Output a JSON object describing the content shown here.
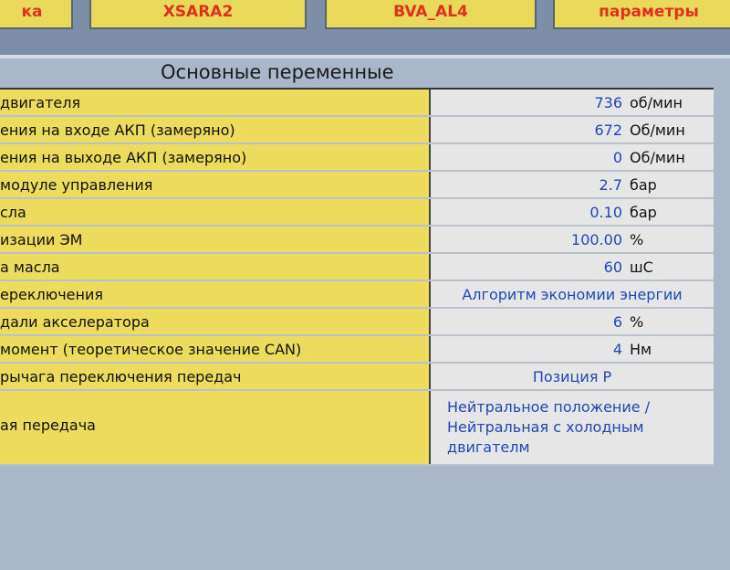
{
  "top_buttons": [
    "ка",
    "XSARA2",
    "BVA_AL4",
    "параметры"
  ],
  "panel_title": "Основные переменные",
  "rows": [
    {
      "label": "двигателя",
      "value": "736",
      "unit": "об/мин"
    },
    {
      "label": "ения на входе АКП (замеряно)",
      "value": "672",
      "unit": "Об/мин"
    },
    {
      "label": "ения на выходе АКП (замеряно)",
      "value": "0",
      "unit": "Об/мин"
    },
    {
      "label": "модуле управления",
      "value": "2.7",
      "unit": "бар"
    },
    {
      "label": "сла",
      "value": "0.10",
      "unit": "бар"
    },
    {
      "label": "изации ЭМ",
      "value": "100.00",
      "unit": "%"
    },
    {
      "label": "а масла",
      "value": "60",
      "unit": "шС"
    },
    {
      "label": "ереключения",
      "value": "Алгоритм экономии энергии"
    },
    {
      "label": "дали акселератора",
      "value": "6",
      "unit": "%"
    },
    {
      "label": "момент (теоретическое значение CAN)",
      "value": "4",
      "unit": "Нм"
    },
    {
      "label": "рычага переключения передач",
      "value": "Позиция P"
    },
    {
      "label": "ая передача",
      "value": "Нейтральное положение /\nНейтральная с холодным\nдвигателм"
    }
  ]
}
